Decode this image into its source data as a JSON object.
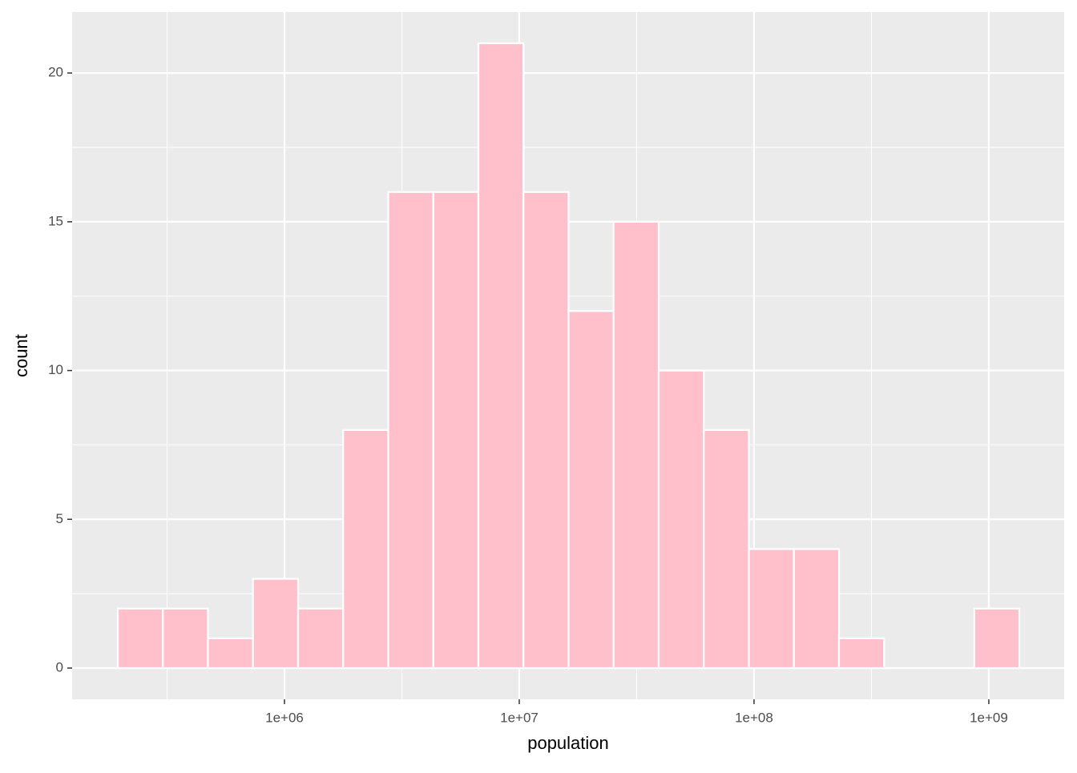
{
  "chart_data": {
    "type": "histogram",
    "x_label": "population",
    "y_label": "count",
    "bins": [
      195000,
      303400,
      472100,
      734500,
      1143000,
      1778000,
      2767000,
      4305000,
      6699000,
      10420000,
      16220000,
      25230000,
      39260000,
      61090000,
      95060000,
      147900000,
      230100000,
      358100000,
      557200000,
      867000000,
      1349000000
    ],
    "values": [
      2,
      2,
      1,
      3,
      2,
      8,
      16,
      16,
      21,
      16,
      12,
      15,
      10,
      8,
      4,
      4,
      1,
      0,
      0,
      2
    ],
    "color": "#ffc0cb",
    "edgecolor": "#ffffff",
    "xscale": "log",
    "xlim": [
      124600,
      2094000000
    ],
    "xticks": [
      {
        "value": 1000000,
        "label": "1e+06"
      },
      {
        "value": 10000000,
        "label": "1e+07"
      },
      {
        "value": 100000000,
        "label": "1e+08"
      },
      {
        "value": 1000000000,
        "label": "1e+09"
      }
    ],
    "xminorticks": [
      316228,
      3162278,
      31622777,
      316227766
    ],
    "ylim": [
      -1.05,
      22.05
    ],
    "yticks": [
      0,
      5,
      10,
      15,
      20
    ],
    "yminorticks": [
      2.5,
      7.5,
      12.5,
      17.5
    ],
    "grid": true
  }
}
